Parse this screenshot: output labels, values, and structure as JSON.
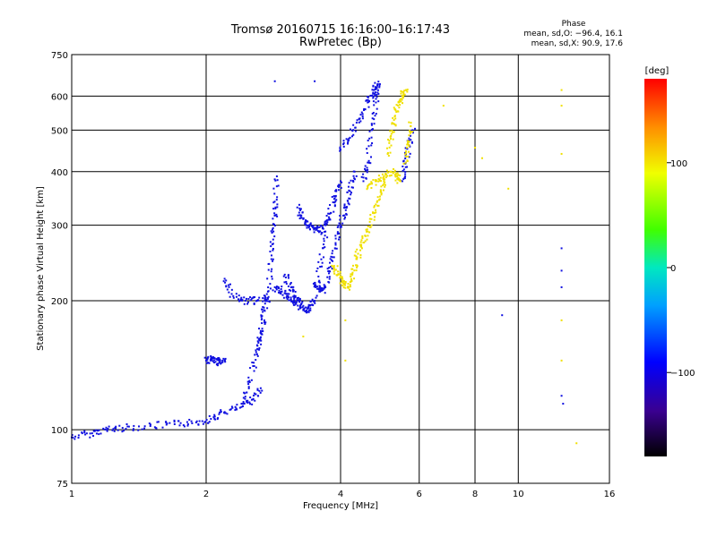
{
  "chart_data": {
    "type": "scatter",
    "title": "Tromsø 20160715 16:16:00–16:17:43",
    "subtitle": "RwPretec (Bp)",
    "xlabel": "Frequency [MHz]",
    "ylabel": "Stationary phase Virtual Height [km]",
    "x_scale": "log",
    "y_scale": "log",
    "xlim": [
      1,
      16
    ],
    "ylim": [
      75,
      750
    ],
    "x_ticks": [
      1,
      2,
      4,
      6,
      8,
      10,
      16
    ],
    "y_ticks": [
      75,
      100,
      200,
      300,
      400,
      500,
      600,
      750
    ],
    "x_tick_labels": [
      "1",
      "2",
      "4",
      "6",
      "8",
      "10",
      "16"
    ],
    "y_tick_labels": [
      "75",
      "100",
      "200",
      "300",
      "400",
      "500",
      "600",
      "750"
    ],
    "grid": true,
    "colorbar": {
      "label": "[deg]",
      "range": [
        -180,
        180
      ],
      "ticks": [
        100,
        0,
        -100
      ],
      "tick_labels": [
        "100",
        "0",
        "−100"
      ]
    },
    "stats": {
      "heading": "Phase",
      "o_line": "mean, sd,O:  −96.4, 16.1",
      "x_line": "mean, sd,X:  90.9, 17.6"
    },
    "series": [
      {
        "mode": "O",
        "phase_mean": -96.4,
        "traces": [
          {
            "x": [
              1.0,
              1.1,
              1.2,
              1.3,
              1.5,
              1.7,
              1.9,
              2.05,
              2.2,
              2.4,
              2.55,
              2.65
            ],
            "y": [
              96,
              98,
              100,
              101,
              102,
              103,
              104,
              106,
              110,
              113,
              118,
              125
            ]
          },
          {
            "x": [
              2.0,
              2.05,
              2.1,
              2.15,
              2.2
            ],
            "y": [
              145,
              146,
              144,
              145,
              145
            ]
          },
          {
            "x": [
              2.2,
              2.3,
              2.45,
              2.6,
              2.75
            ],
            "y": [
              225,
              205,
              200,
              200,
              202
            ]
          },
          {
            "x": [
              2.6,
              2.65,
              2.7,
              2.75,
              2.8,
              2.83,
              2.86,
              2.88
            ],
            "y": [
              150,
              170,
              190,
              210,
              250,
              290,
              330,
              390
            ]
          },
          {
            "x": [
              2.4,
              2.5,
              2.6,
              2.7
            ],
            "y": [
              115,
              130,
              150,
              180
            ]
          },
          {
            "x": [
              2.85,
              2.95,
              3.05,
              3.15,
              3.25
            ],
            "y": [
              215,
              210,
              205,
              200,
              195
            ]
          },
          {
            "x": [
              3.0,
              3.1,
              3.2,
              3.3,
              3.4,
              3.5,
              3.6,
              3.7
            ],
            "y": [
              230,
              215,
              200,
              190,
              190,
              200,
              240,
              290
            ]
          },
          {
            "x": [
              3.2,
              3.3,
              3.4,
              3.5,
              3.6,
              3.7,
              3.8,
              3.9,
              4.0
            ],
            "y": [
              330,
              310,
              300,
              295,
              290,
              300,
              320,
              350,
              380
            ]
          },
          {
            "x": [
              3.5,
              3.6,
              3.7,
              3.8,
              3.9,
              4.0,
              4.1,
              4.2,
              4.3
            ],
            "y": [
              220,
              210,
              215,
              240,
              270,
              300,
              330,
              360,
              400
            ]
          },
          {
            "x": [
              4.0,
              4.2,
              4.4,
              4.6,
              4.75,
              4.85
            ],
            "y": [
              450,
              480,
              530,
              580,
              620,
              640
            ]
          },
          {
            "x": [
              4.5,
              4.6,
              4.7,
              4.8,
              4.9
            ],
            "y": [
              380,
              420,
              500,
              580,
              640
            ]
          },
          {
            "x": [
              5.5,
              5.6,
              5.7,
              5.8
            ],
            "y": [
              380,
              420,
              460,
              500
            ]
          },
          {
            "x": [
              2.85,
              3.5,
              9.2,
              12.5,
              12.5,
              12.5,
              12.5,
              12.6
            ],
            "y": [
              650,
              650,
              185,
              265,
              235,
              215,
              120,
              115
            ]
          }
        ]
      },
      {
        "mode": "X",
        "phase_mean": 90.9,
        "traces": [
          {
            "x": [
              3.85,
              3.95,
              4.05,
              4.15,
              4.25,
              4.35,
              4.45,
              4.6,
              4.75,
              4.9,
              5.0
            ],
            "y": [
              240,
              230,
              220,
              215,
              230,
              250,
              270,
              290,
              320,
              350,
              380
            ]
          },
          {
            "x": [
              4.6,
              4.8,
              5.0,
              5.2,
              5.35,
              5.45
            ],
            "y": [
              370,
              380,
              390,
              400,
              390,
              380
            ]
          },
          {
            "x": [
              5.1,
              5.2,
              5.3,
              5.4,
              5.5,
              5.6
            ],
            "y": [
              440,
              490,
              540,
              580,
              600,
              620
            ]
          },
          {
            "x": [
              5.6,
              5.7,
              5.75
            ],
            "y": [
              420,
              470,
              520
            ]
          },
          {
            "x": [
              3.3,
              4.1,
              4.1,
              6.8,
              8.0,
              8.3,
              9.5,
              12.5,
              12.5,
              12.5,
              12.5,
              12.5,
              13.5
            ],
            "y": [
              165,
              145,
              180,
              570,
              455,
              430,
              365,
              620,
              570,
              440,
              180,
              145,
              93
            ]
          }
        ]
      }
    ],
    "colors": {
      "grid": "#000000",
      "background": "#ffffff",
      "o_trace": "#1010e0",
      "x_trace": "#f0e000"
    }
  }
}
